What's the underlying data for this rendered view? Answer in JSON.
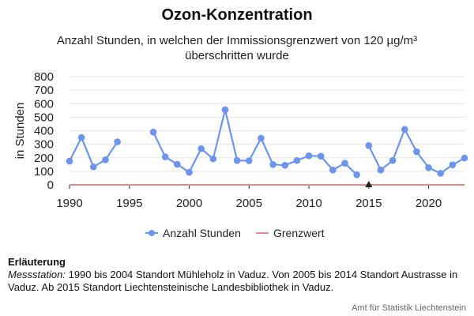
{
  "chart_data": {
    "type": "line",
    "title": "Ozon-Konzentration",
    "subtitle": "Anzahl Stunden, in welchen der Immissionsgrenzwert von 120 µg/m³ überschritten wurde",
    "ylabel": "in Stunden",
    "xlabel": "",
    "ylim": [
      0,
      800
    ],
    "xlim": [
      1990,
      2023
    ],
    "yticks": [
      "0",
      "100",
      "200",
      "300",
      "400",
      "500",
      "600",
      "700",
      "800"
    ],
    "ytick_values": [
      0,
      100,
      200,
      300,
      400,
      500,
      600,
      700,
      800
    ],
    "xticks": [
      "1990",
      "1995",
      "2000",
      "2005",
      "2010",
      "2015",
      "2020"
    ],
    "xtick_values": [
      1990,
      1995,
      2000,
      2005,
      2010,
      2015,
      2020
    ],
    "grid": true,
    "legend_position": "bottom",
    "series": [
      {
        "name": "Anzahl Stunden",
        "color": "#6d95ec",
        "segments": [
          {
            "x": [
              1990,
              1991,
              1992,
              1993,
              1994
            ],
            "y": [
              175,
              350,
              133,
              185,
              318
            ]
          },
          {
            "x": [
              1997,
              1998,
              1999,
              2000,
              2001,
              2002,
              2003,
              2004,
              2005,
              2006,
              2007,
              2008,
              2009,
              2010,
              2011,
              2012,
              2013,
              2014
            ],
            "y": [
              390,
              207,
              152,
              93,
              268,
              192,
              555,
              180,
              178,
              345,
              150,
              145,
              180,
              215,
              212,
              110,
              160,
              75
            ]
          },
          {
            "x": [
              2015,
              2016,
              2017,
              2018,
              2019,
              2020,
              2021,
              2022,
              2023
            ],
            "y": [
              290,
              110,
              180,
              410,
              245,
              127,
              85,
              148,
              198
            ]
          }
        ]
      },
      {
        "name": "Grenzwert",
        "color": "#e88a8a",
        "x": [
          1990,
          2023
        ],
        "y": [
          0,
          0
        ]
      }
    ],
    "annotations": [
      {
        "type": "triangle-marker",
        "x": 2015,
        "y": 0,
        "color": "#222222"
      }
    ]
  },
  "notes": {
    "heading": "Erläuterung",
    "label": "Messstation:",
    "text": " 1990 bis 2004 Standort Mühleholz in Vaduz. Von 2005 bis 2014 Standort Austrasse in Vaduz. Ab 2015 Standort Liechtensteinische Landesbibliothek in Vaduz."
  },
  "source": "Amt für Statistik Liechtenstein"
}
